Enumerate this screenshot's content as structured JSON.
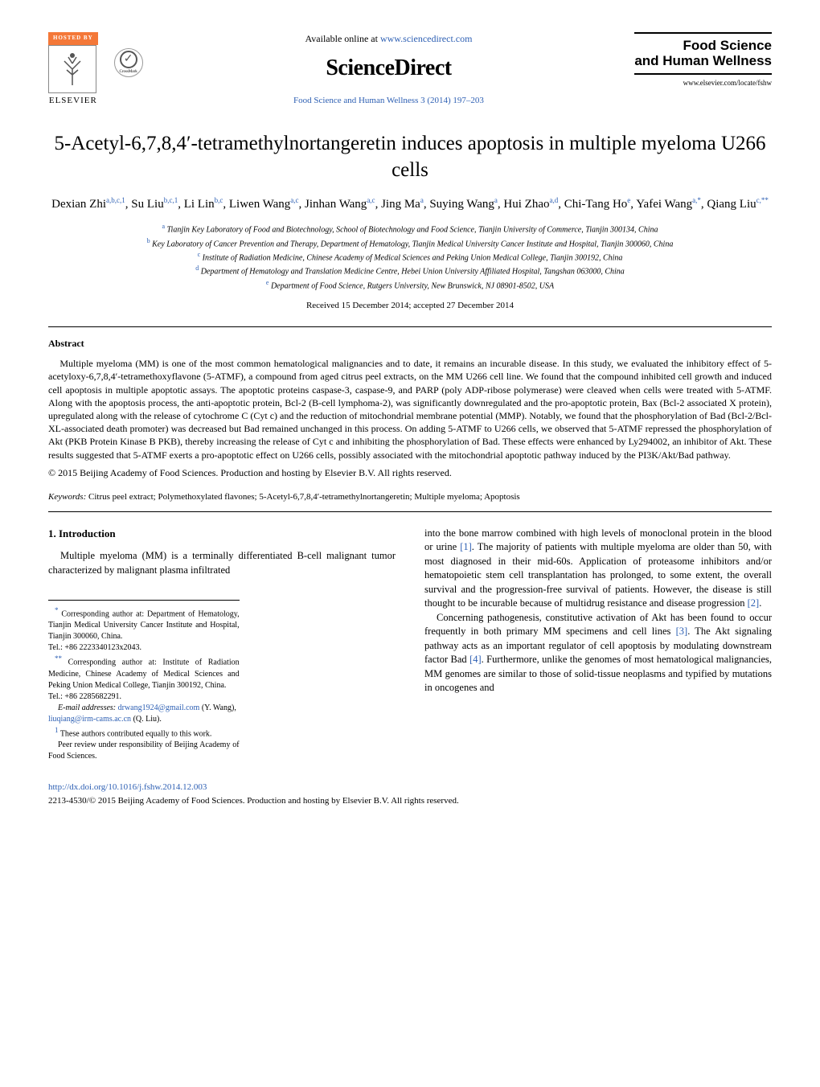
{
  "header": {
    "hosted_by": "HOSTED BY",
    "elsevier": "ELSEVIER",
    "crossmark": "CrossMark",
    "available_text": "Available online at ",
    "available_url": "www.sciencedirect.com",
    "sciencedirect": "ScienceDirect",
    "journal_ref": "Food Science and Human Wellness 3 (2014) 197–203",
    "journal_name_line1": "Food Science",
    "journal_name_line2": "and Human Wellness",
    "journal_site": "www.elsevier.com/locate/fshw"
  },
  "title": "5-Acetyl-6,7,8,4′-tetramethylnortangeretin induces apoptosis in multiple myeloma U266 cells",
  "authors": [
    {
      "name": "Dexian Zhi",
      "aff": "a,b,c,1"
    },
    {
      "name": "Su Liu",
      "aff": "b,c,1"
    },
    {
      "name": "Li Lin",
      "aff": "b,c"
    },
    {
      "name": "Liwen Wang",
      "aff": "a,c"
    },
    {
      "name": "Jinhan Wang",
      "aff": "a,c"
    },
    {
      "name": "Jing Ma",
      "aff": "a"
    },
    {
      "name": "Suying Wang",
      "aff": "a"
    },
    {
      "name": "Hui Zhao",
      "aff": "a,d"
    },
    {
      "name": "Chi-Tang Ho",
      "aff": "e"
    },
    {
      "name": "Yafei Wang",
      "aff": "a,*"
    },
    {
      "name": "Qiang Liu",
      "aff": "c,**"
    }
  ],
  "affiliations": {
    "a": "Tianjin Key Laboratory of Food and Biotechnology, School of Biotechnology and Food Science, Tianjin University of Commerce, Tianjin 300134, China",
    "b": "Key Laboratory of Cancer Prevention and Therapy, Department of Hematology, Tianjin Medical University Cancer Institute and Hospital, Tianjin 300060, China",
    "c": "Institute of Radiation Medicine, Chinese Academy of Medical Sciences and Peking Union Medical College, Tianjin 300192, China",
    "d": "Department of Hematology and Translation Medicine Centre, Hebei Union University Affiliated Hospital, Tangshan 063000, China",
    "e": "Department of Food Science, Rutgers University, New Brunswick, NJ 08901-8502, USA"
  },
  "received": "Received 15 December 2014; accepted 27 December 2014",
  "abstract": {
    "heading": "Abstract",
    "body": "Multiple myeloma (MM) is one of the most common hematological malignancies and to date, it remains an incurable disease. In this study, we evaluated the inhibitory effect of 5-acetyloxy-6,7,8,4′-tetramethoxyflavone (5-ATMF), a compound from aged citrus peel extracts, on the MM U266 cell line. We found that the compound inhibited cell growth and induced cell apoptosis in multiple apoptotic assays. The apoptotic proteins caspase-3, caspase-9, and PARP (poly ADP-ribose polymerase) were cleaved when cells were treated with 5-ATMF. Along with the apoptosis process, the anti-apoptotic protein, Bcl-2 (B-cell lymphoma-2), was significantly downregulated and the pro-apoptotic protein, Bax (Bcl-2 associated X protein), upregulated along with the release of cytochrome C (Cyt c) and the reduction of mitochondrial membrane potential (MMP). Notably, we found that the phosphorylation of Bad (Bcl-2/Bcl-XL-associated death promoter) was decreased but Bad remained unchanged in this process. On adding 5-ATMF to U266 cells, we observed that 5-ATMF repressed the phosphorylation of Akt (PKB Protein Kinase B PKB), thereby increasing the release of Cyt c and inhibiting the phosphorylation of Bad. These effects were enhanced by Ly294002, an inhibitor of Akt. These results suggested that 5-ATMF exerts a pro-apoptotic effect on U266 cells, possibly associated with the mitochondrial apoptotic pathway induced by the PI3K/Akt/Bad pathway.",
    "copyright": "© 2015 Beijing Academy of Food Sciences. Production and hosting by Elsevier B.V. All rights reserved."
  },
  "keywords": {
    "label": "Keywords:",
    "text": "Citrus peel extract; Polymethoxylated flavones; 5-Acetyl-6,7,8,4′-tetramethylnortangeretin; Multiple myeloma; Apoptosis"
  },
  "intro": {
    "heading": "1.  Introduction",
    "left_p1": "Multiple myeloma (MM) is a terminally differentiated B-cell malignant tumor characterized by malignant plasma infiltrated",
    "right_p1_a": "into the bone marrow combined with high levels of monoclonal protein in the blood or urine ",
    "right_p1_ref1": "[1]",
    "right_p1_b": ". The majority of patients with multiple myeloma are older than 50, with most diagnosed in their mid-60s. Application of proteasome inhibitors and/or hematopoietic stem cell transplantation has prolonged, to some extent, the overall survival and the progression-free survival of patients. However, the disease is still thought to be incurable because of multidrug resistance and disease progression ",
    "right_p1_ref2": "[2]",
    "right_p1_c": ".",
    "right_p2_a": "Concerning pathogenesis, constitutive activation of Akt has been found to occur frequently in both primary MM specimens and cell lines ",
    "right_p2_ref3": "[3]",
    "right_p2_b": ". The Akt signaling pathway acts as an important regulator of cell apoptosis by modulating downstream factor Bad ",
    "right_p2_ref4": "[4]",
    "right_p2_c": ". Furthermore, unlike the genomes of most hematological malignancies, MM genomes are similar to those of solid-tissue neoplasms and typified by mutations in oncogenes and"
  },
  "footnotes": {
    "corr1": "Corresponding author at: Department of Hematology, Tianjin Medical University Cancer Institute and Hospital, Tianjin 300060, China.",
    "tel1": "Tel.: +86 2223340123x2043.",
    "corr2": "Corresponding author at: Institute of Radiation Medicine, Chinese Academy of Medical Sciences and Peking Union Medical College, Tianjin 300192, China.",
    "tel2": "Tel.: +86 2285682291.",
    "email_label": "E-mail addresses:",
    "email1": "drwang1924@gmail.com",
    "email1_who": "(Y. Wang),",
    "email2": "liuqiang@irm-cams.ac.cn",
    "email2_who": "(Q. Liu).",
    "equal": "These authors contributed equally to this work.",
    "peer": "Peer review under responsibility of Beijing Academy of Food Sciences."
  },
  "doi": "http://dx.doi.org/10.1016/j.fshw.2014.12.003",
  "issn_line": "2213-4530/© 2015 Beijing Academy of Food Sciences. Production and hosting by Elsevier B.V. All rights reserved.",
  "colors": {
    "link": "#2d5fb3",
    "hosted_bg": "#f47838"
  }
}
